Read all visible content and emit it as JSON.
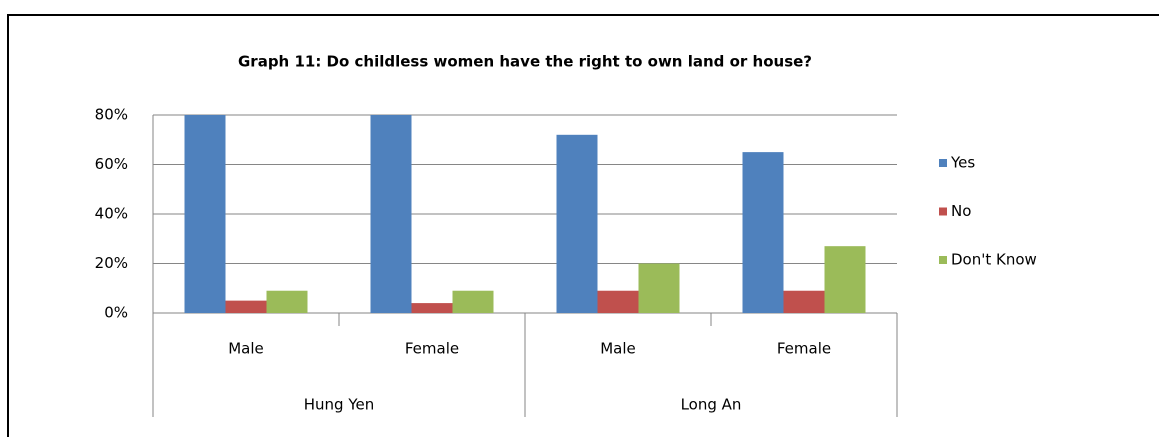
{
  "chart_data": {
    "type": "bar",
    "title": "Graph 11: Do childless women have the right to own land or house?",
    "groups": [
      "Hung Yen",
      "Long An"
    ],
    "categories": [
      "Male",
      "Female",
      "Male",
      "Female"
    ],
    "series": [
      {
        "name": "Yes",
        "color": "#4f81bd",
        "values": [
          80,
          80,
          72,
          65
        ]
      },
      {
        "name": "No",
        "color": "#c0504d",
        "values": [
          5,
          4,
          9,
          9
        ]
      },
      {
        "name": "Don't Know",
        "color": "#9bbb59",
        "values": [
          9,
          9,
          20,
          27
        ]
      }
    ],
    "ylim": [
      0,
      80
    ],
    "yticks": [
      {
        "value": 0,
        "label": "0%"
      },
      {
        "value": 20,
        "label": "20%"
      },
      {
        "value": 40,
        "label": "40%"
      },
      {
        "value": 60,
        "label": "60%"
      },
      {
        "value": 80,
        "label": "80%"
      }
    ],
    "grid": true,
    "legend": "right"
  }
}
